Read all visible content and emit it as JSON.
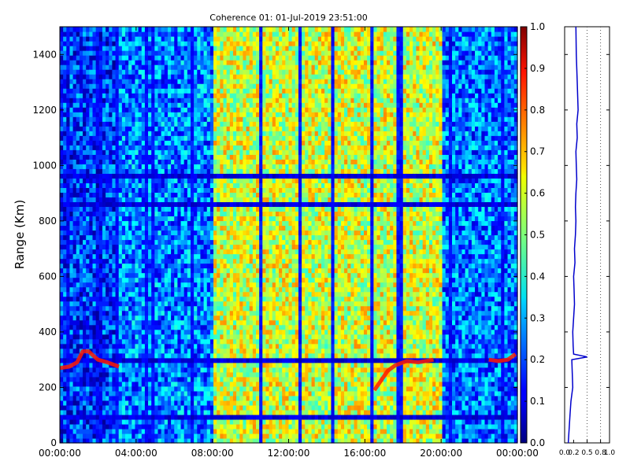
{
  "chart_data": [
    {
      "type": "heatmap",
      "title": "Coherence 01: 01-Jul-2019 23:51:00",
      "xlabel": "",
      "ylabel": "Range (Km)",
      "x_ticks": [
        "00:00:00",
        "04:00:00",
        "08:00:00",
        "12:00:00",
        "16:00:00",
        "20:00:00",
        "00:00:00"
      ],
      "x_tick_hours": [
        0,
        4,
        8,
        12,
        16,
        20,
        24
      ],
      "xlim_hours": [
        0,
        24
      ],
      "y_ticks": [
        0,
        200,
        400,
        600,
        800,
        1000,
        1200,
        1400
      ],
      "ylim": [
        0,
        1500
      ],
      "colormap": "jet",
      "colorbar": {
        "ticks": [
          0.0,
          0.1,
          0.2,
          0.3,
          0.4,
          0.5,
          0.6,
          0.7,
          0.8,
          0.9,
          1.0
        ],
        "tick_labels": [
          "0.0",
          "0.1",
          "0.2",
          "0.3",
          "0.4",
          "0.5",
          "0.6",
          "0.7",
          "0.8",
          "0.9",
          "1.0"
        ],
        "range": [
          0,
          1
        ]
      },
      "time_profile": [
        {
          "start_hour": 0,
          "end_hour": 3,
          "mean_coherence": 0.18
        },
        {
          "start_hour": 3,
          "end_hour": 8,
          "mean_coherence": 0.25
        },
        {
          "start_hour": 8,
          "end_hour": 20,
          "mean_coherence": 0.58
        },
        {
          "start_hour": 20,
          "end_hour": 24,
          "mean_coherence": 0.24
        }
      ],
      "low_coherence_range_bands_km": [
        100,
        300,
        860,
        960
      ],
      "feature_segments": [
        {
          "x_hours": [
            0.0,
            0.5,
            0.9,
            1.2,
            1.5,
            2.0,
            2.5,
            3.1
          ],
          "y_km": [
            270,
            275,
            290,
            330,
            330,
            300,
            290,
            275
          ]
        },
        {
          "x_hours": [
            16.5,
            16.8,
            17.2,
            17.6,
            18.2,
            18.8,
            19.6
          ],
          "y_km": [
            190,
            220,
            260,
            280,
            295,
            290,
            300
          ]
        },
        {
          "x_hours": [
            22.5,
            23.0,
            23.5,
            23.9
          ],
          "y_km": [
            300,
            295,
            300,
            320
          ]
        }
      ],
      "grid": false
    },
    {
      "type": "line",
      "title": "",
      "xlabel": "",
      "ylabel": "",
      "x_ticks": [
        0.0,
        0.2,
        0.5,
        0.8,
        1.0
      ],
      "x_tick_labels": [
        "0.0",
        "0.2",
        "0.5",
        "0.8",
        "1.0"
      ],
      "xlim": [
        0,
        1
      ],
      "ylim": [
        0,
        1500
      ],
      "dotted_reference_lines": [
        0.5,
        0.8
      ],
      "series": [
        {
          "color": "#0000cc",
          "x": [
            0.08,
            0.1,
            0.12,
            0.14,
            0.18,
            0.17,
            0.16,
            0.5,
            0.2,
            0.19,
            0.18,
            0.2,
            0.22,
            0.21,
            0.2,
            0.23,
            0.22,
            0.24,
            0.25,
            0.24,
            0.25,
            0.27,
            0.26,
            0.25,
            0.28,
            0.27,
            0.3,
            0.28,
            0.27,
            0.26,
            0.25
          ],
          "y": [
            0,
            50,
            100,
            150,
            200,
            250,
            300,
            310,
            320,
            350,
            400,
            450,
            500,
            550,
            600,
            650,
            700,
            750,
            800,
            850,
            900,
            950,
            1000,
            1050,
            1100,
            1150,
            1200,
            1300,
            1350,
            1400,
            1500
          ]
        }
      ],
      "grid": false
    }
  ]
}
